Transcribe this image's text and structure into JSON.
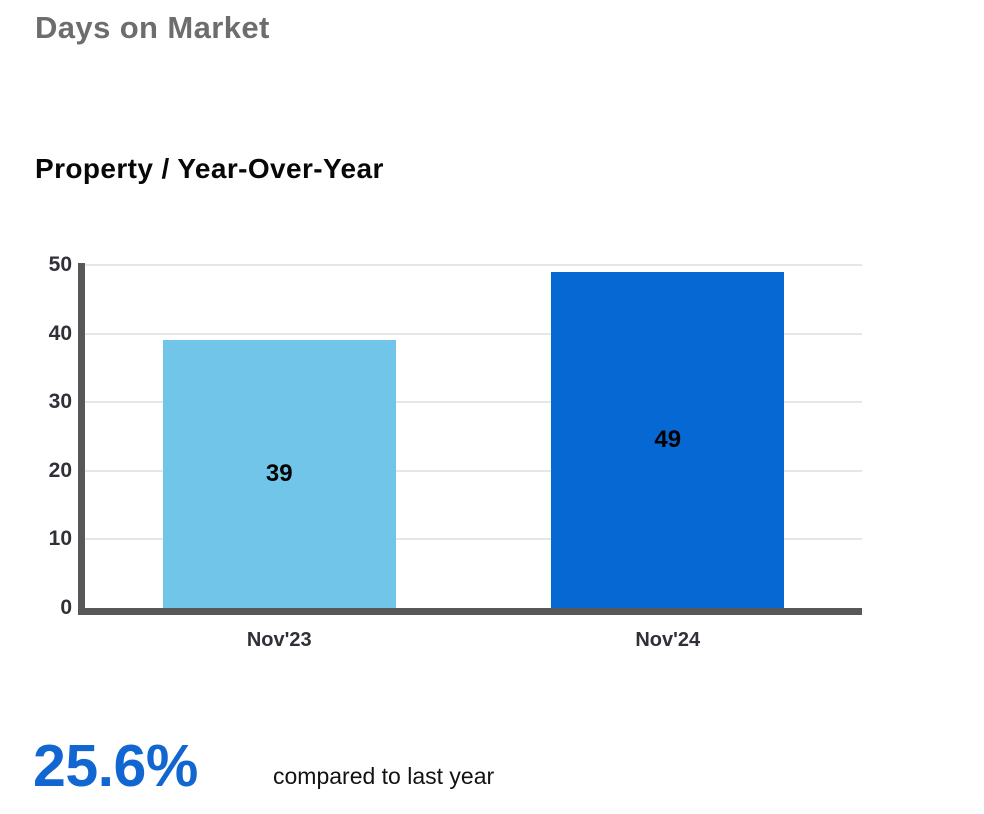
{
  "header": {
    "title": "Days on Market"
  },
  "section": {
    "subtitle": "Property / Year-Over-Year"
  },
  "chart_data": {
    "type": "bar",
    "title": "Property / Year-Over-Year",
    "categories": [
      "Nov'23",
      "Nov'24"
    ],
    "values": [
      39,
      49
    ],
    "bar_colors": [
      "#70c5e8",
      "#0668d2"
    ],
    "xlabel": "",
    "ylabel": "",
    "ylim": [
      0,
      50
    ],
    "yticks": [
      0,
      10,
      20,
      30,
      40,
      50
    ],
    "grid": "horizontal",
    "legend": "none"
  },
  "footer": {
    "percent": "25.6%",
    "caption": "compared to last year"
  },
  "colors": {
    "title_gray": "#6d6d6d",
    "axis": "#58585a",
    "gridline": "#e6e6e6",
    "percent_blue": "#1266d1",
    "bar_light_blue": "#70c5e8",
    "bar_dark_blue": "#0668d2"
  }
}
